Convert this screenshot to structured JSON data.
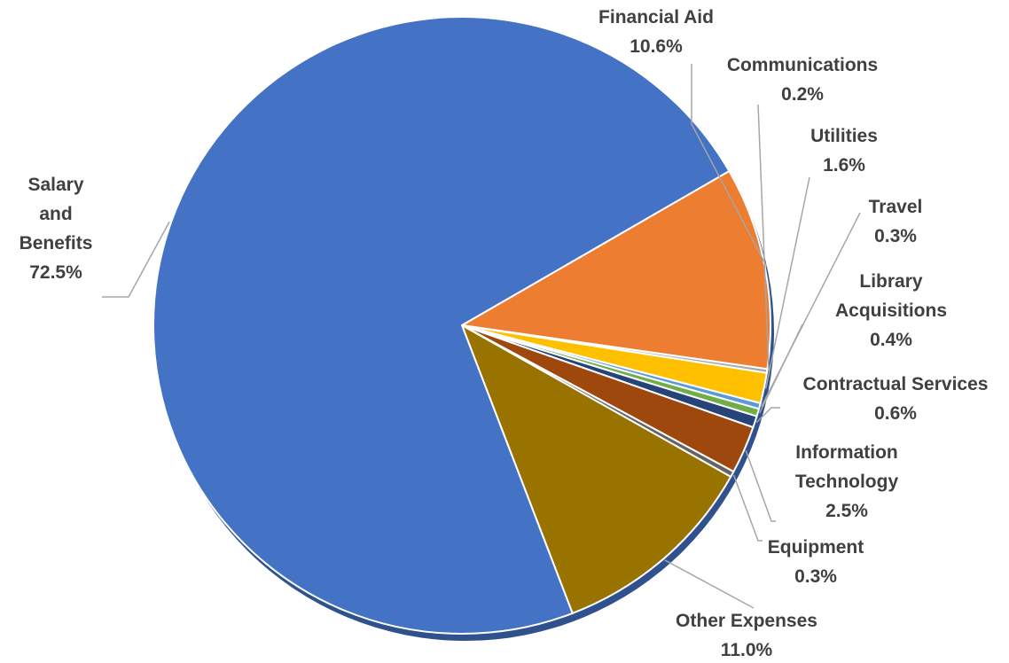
{
  "chart_data": {
    "type": "pie",
    "title": "",
    "slices": [
      {
        "label": "Financial Aid",
        "value": 10.6,
        "value_label": "10.6%",
        "color": "#ED7D31"
      },
      {
        "label": "Communications",
        "value": 0.2,
        "value_label": "0.2%",
        "color": "#A5A5A5"
      },
      {
        "label": "Utilities",
        "value": 1.6,
        "value_label": "1.6%",
        "color": "#FFC000"
      },
      {
        "label": "Travel",
        "value": 0.3,
        "value_label": "0.3%",
        "color": "#5B9BD5"
      },
      {
        "label": "Library Acquisitions",
        "value": 0.4,
        "value_label": "0.4%",
        "color": "#70AD47"
      },
      {
        "label": "Contractual Services",
        "value": 0.6,
        "value_label": "0.6%",
        "color": "#264478"
      },
      {
        "label": "Information Technology",
        "value": 2.5,
        "value_label": "2.5%",
        "color": "#9E480E"
      },
      {
        "label": "Equipment",
        "value": 0.3,
        "value_label": "0.3%",
        "color": "#636363"
      },
      {
        "label": "Other Expenses",
        "value": 11.0,
        "value_label": "11.0%",
        "color": "#997300"
      },
      {
        "label": "Salary and Benefits",
        "value": 72.5,
        "value_label": "72.5%",
        "color": "#4472C4"
      }
    ],
    "legend": "none",
    "data_labels": "outside with leader lines"
  }
}
